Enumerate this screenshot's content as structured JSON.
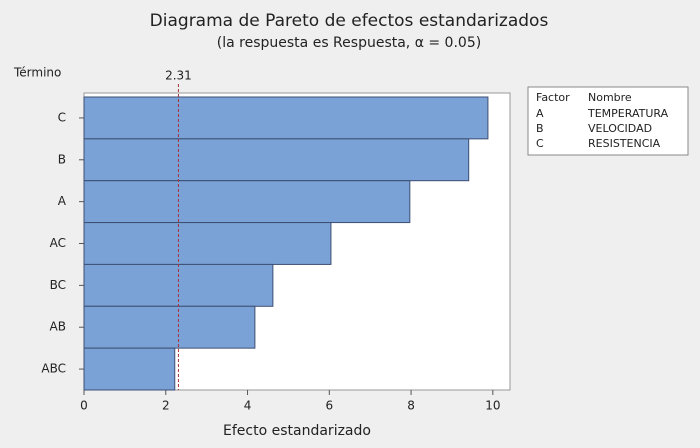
{
  "chart_data": {
    "type": "hbar",
    "title": "Diagrama de Pareto de efectos estandarizados",
    "subtitle": "(la respuesta es Respuesta, α = 0.05)",
    "y_label": "Término",
    "x_label": "Efecto estandarizado",
    "categories": [
      "C",
      "B",
      "A",
      "AC",
      "BC",
      "AB",
      "ABC"
    ],
    "values": [
      9.88,
      9.41,
      7.97,
      6.04,
      4.62,
      4.18,
      2.22
    ],
    "color": "#7ba2d6",
    "edge_color": "#3d4f73",
    "reference_line": 2.31,
    "reference_color": "#a8323a",
    "xlim": [
      0,
      10.42
    ],
    "xticks": [
      0,
      2,
      4,
      6,
      8,
      10
    ],
    "legend_table": {
      "columns": [
        "Factor",
        "Nombre"
      ],
      "rows": [
        [
          "A",
          "TEMPERATURA"
        ],
        [
          "B",
          "VELOCIDAD"
        ],
        [
          "C",
          "RESISTENCIA"
        ]
      ]
    }
  }
}
